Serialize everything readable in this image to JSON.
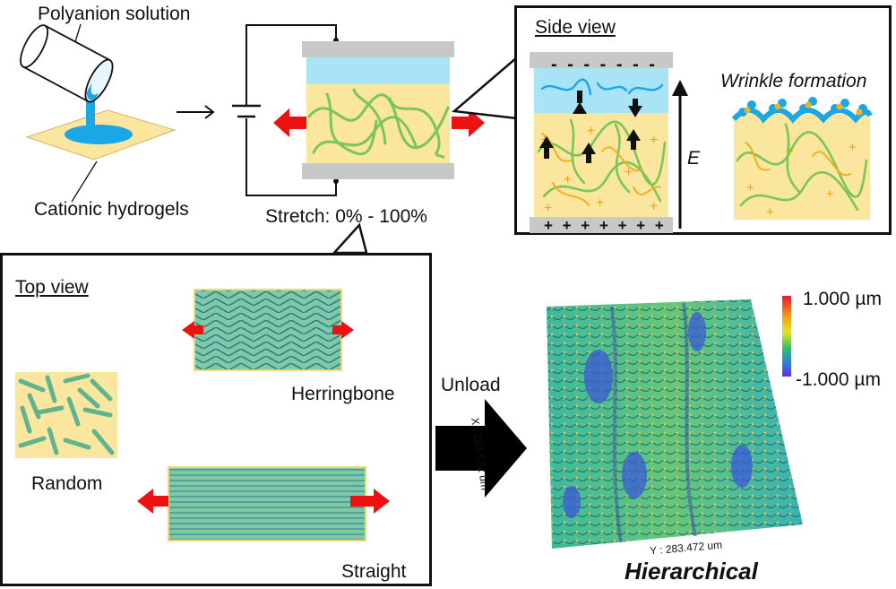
{
  "top_left": {
    "polyanion_label": "Polyanion solution",
    "cationic_label": "Cationic hydrogels"
  },
  "stretch_label": "Stretch: 0% - 100%",
  "side_view": {
    "title": "Side view",
    "wrinkle_label": "Wrinkle formation",
    "field_label": "E",
    "top_electrode_signs": "- - - - - - -",
    "bottom_electrode_signs": "+ + + + + + +"
  },
  "top_view": {
    "title": "Top view",
    "herringbone_label": "Herringbone",
    "random_label": "Random",
    "straight_label": "Straight"
  },
  "unload_label": "Unload",
  "afm": {
    "scale_max": "1.000 µm",
    "scale_min": "-1.000 µm",
    "x_axis_label": "X : 283.532 um",
    "y_axis_label": "Y : 283.472 um",
    "caption": "Hierarchical"
  },
  "colors": {
    "hydrogel": "#fbe6a0",
    "polyanion": "#a8e4f5",
    "electrode": "#c8c8c8",
    "chain": "#7cc557",
    "arrow_red": "#ee1111",
    "blue_liquid": "#1aa7e6"
  }
}
